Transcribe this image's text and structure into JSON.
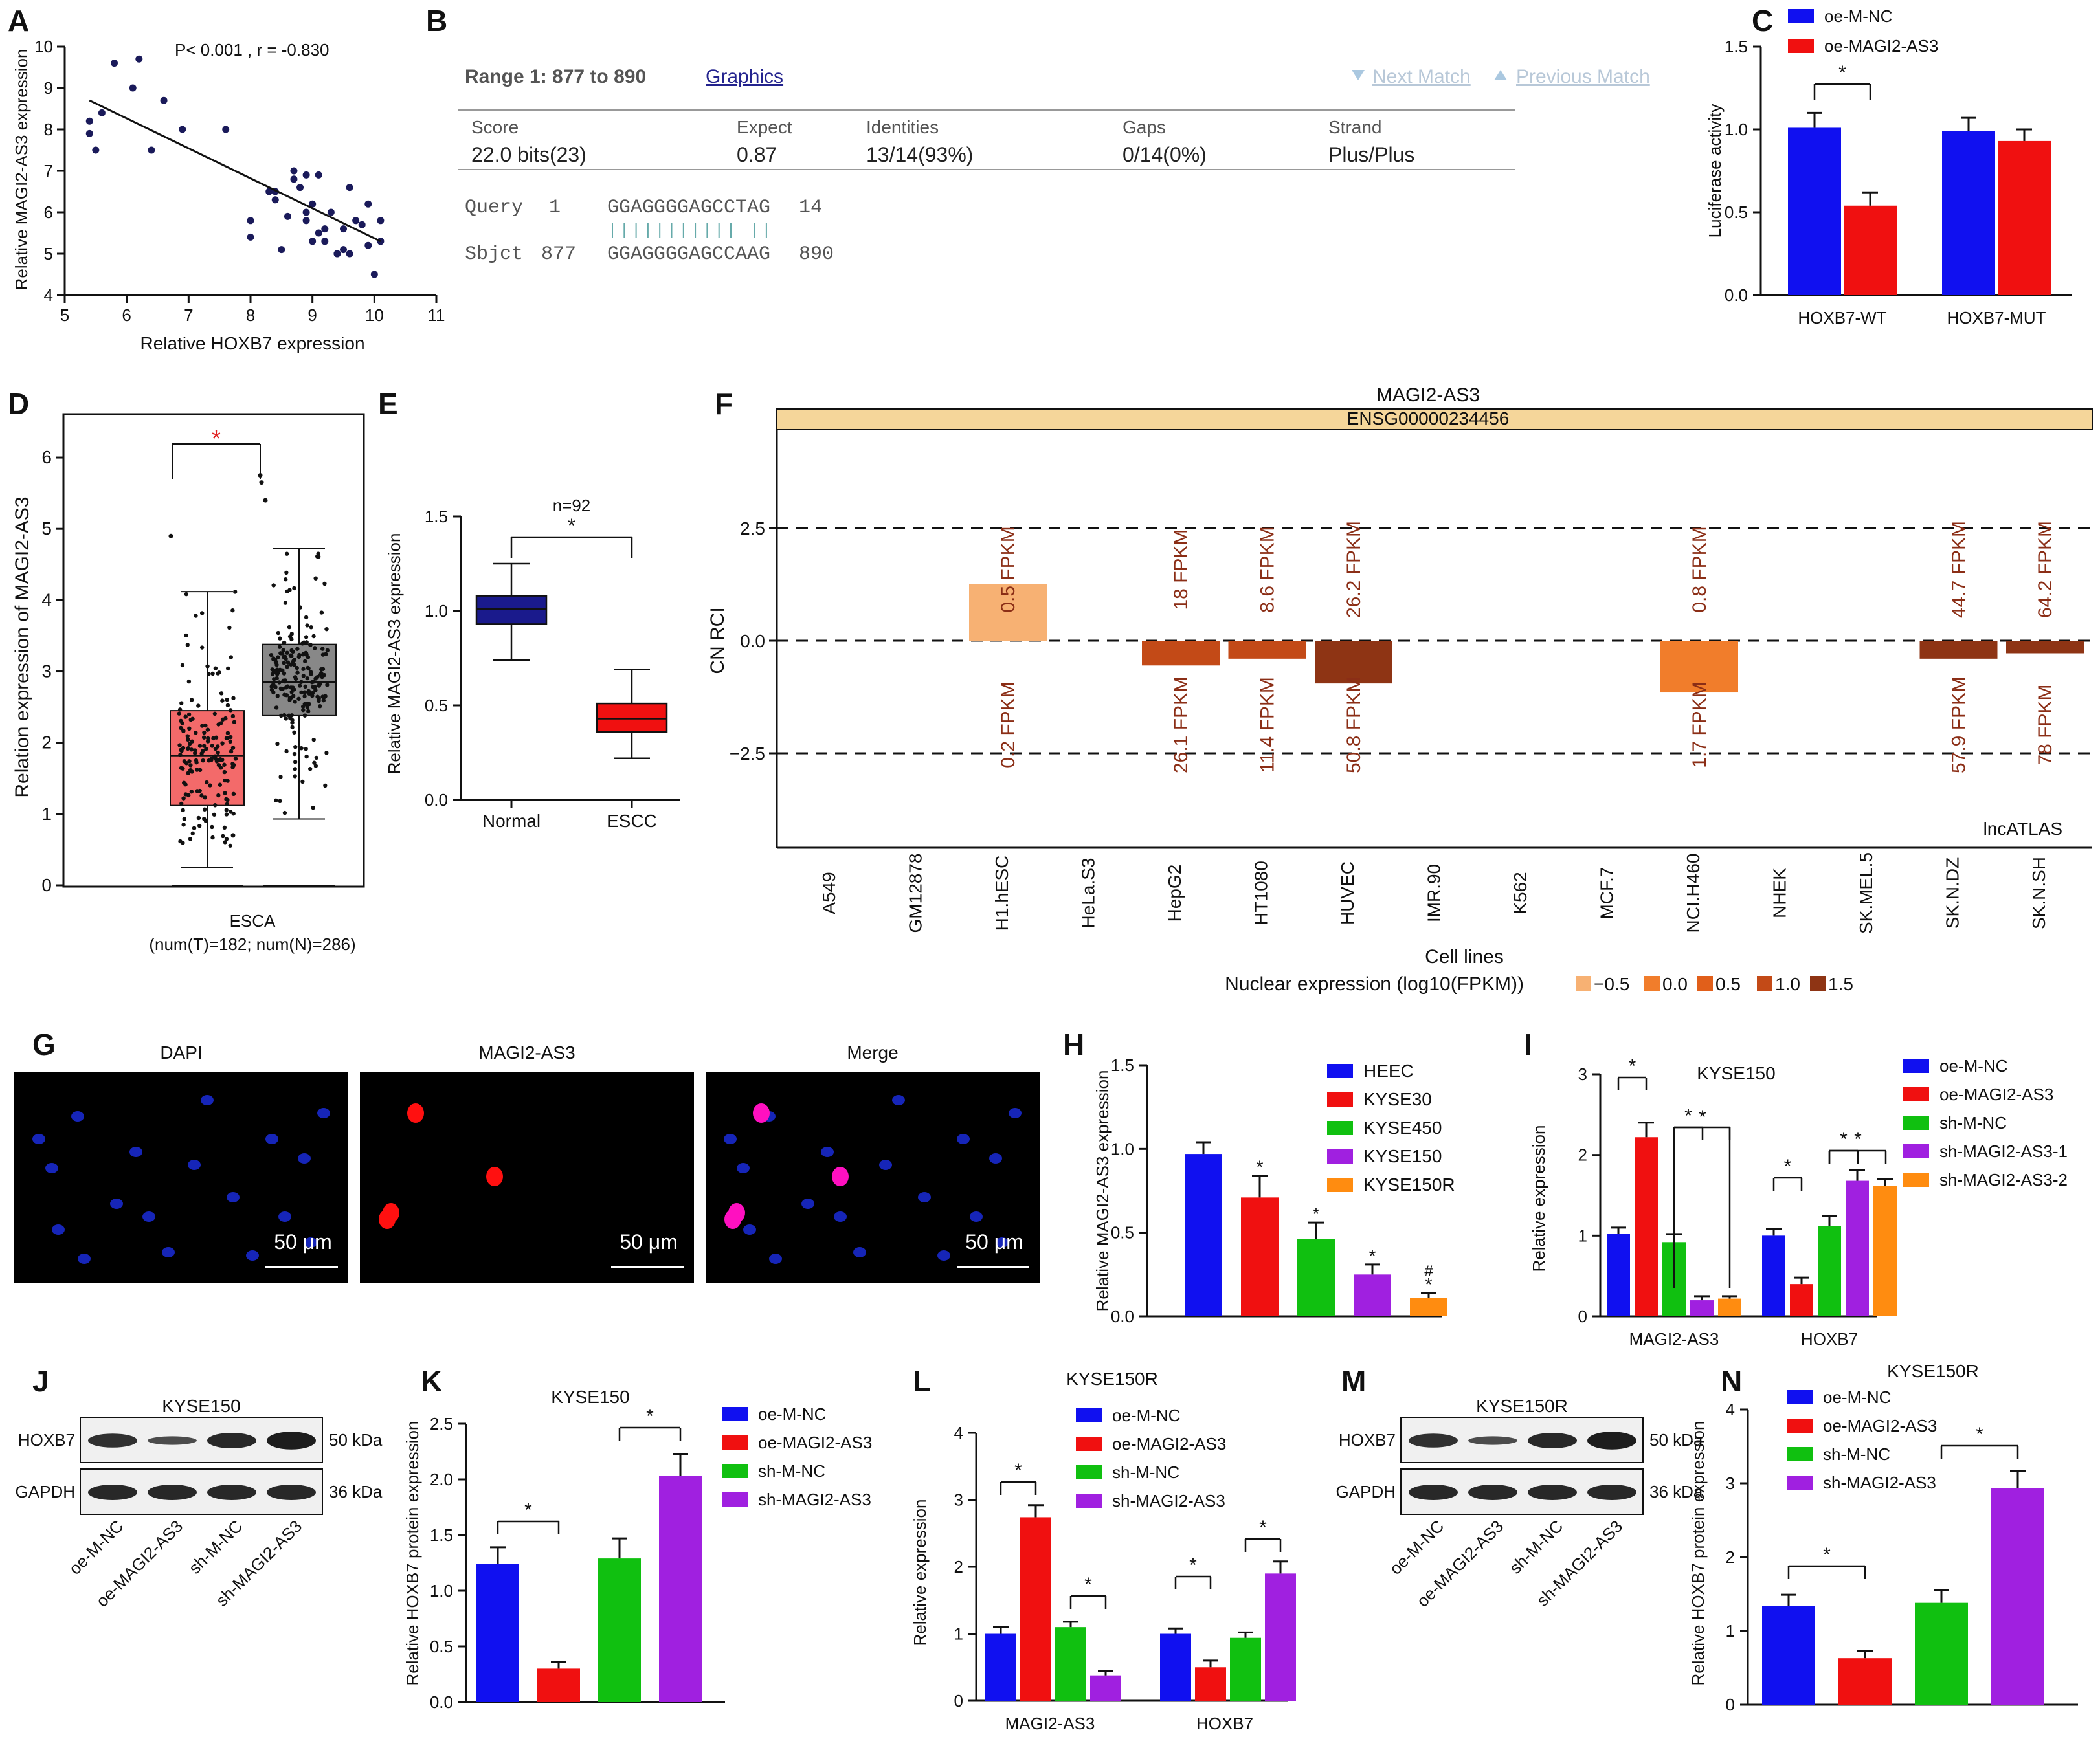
{
  "colors": {
    "blue": "#1010f0",
    "red": "#f01010",
    "green": "#10c010",
    "purple": "#a020e0",
    "orange": "#ff8c10",
    "navy": "#1a1a8c",
    "gray": "#777777"
  },
  "panels": {
    "A": {
      "label": "A",
      "stat": "P< 0.001 , r = -0.830",
      "xlabel": "Relative HOXB7 expression",
      "ylabel": "Relative MAGI2-AS3 expression",
      "xticks": [
        "5",
        "6",
        "7",
        "8",
        "9",
        "10",
        "11"
      ],
      "yticks": [
        "4",
        "5",
        "6",
        "7",
        "8",
        "9",
        "10"
      ]
    },
    "B": {
      "label": "B",
      "range": "Range 1: 877 to 890",
      "graphics": "Graphics",
      "next": "Next Match",
      "prev": "Previous Match",
      "headers": [
        "Score",
        "Expect",
        "Identities",
        "Gaps",
        "Strand"
      ],
      "values": [
        "22.0 bits(23)",
        "0.87",
        "13/14(93%)",
        "0/14(0%)",
        "Plus/Plus"
      ],
      "query_label": "Query",
      "query_start": "1",
      "query_seq": "GGAGGGGAGCCTAG",
      "query_end": "14",
      "sbjct_label": "Sbjct",
      "sbjct_start": "877",
      "sbjct_seq": "GGAGGGGAGCCAAG",
      "sbjct_end": "890"
    },
    "C": {
      "label": "C",
      "legend": [
        "oe-M-NC",
        "oe-MAGI2-AS3"
      ],
      "ylabel": "Luciferase activity",
      "yticks": [
        "0.0",
        "0.5",
        "1.0",
        "1.5"
      ],
      "star": "*"
    },
    "D": {
      "label": "D",
      "ylabel": "Relation expression of MAGI2-AS3",
      "yticks": [
        "0",
        "1",
        "2",
        "3",
        "4",
        "5",
        "6"
      ],
      "xlabel1": "ESCA",
      "xlabel2": "(num(T)=182; num(N)=286)",
      "star": "*"
    },
    "E": {
      "label": "E",
      "ylabel": "Relative MAGI2-AS3 expression",
      "yticks": [
        "0.0",
        "0.5",
        "1.0",
        "1.5"
      ],
      "n": "n=92",
      "star": "*"
    },
    "F": {
      "label": "F",
      "title": "MAGI2-AS3",
      "gene_id": "ENSG00000234456",
      "ylabel": "CN RCI",
      "yticks": [
        "2.5",
        "0.0",
        "−2.5"
      ],
      "corner": "lncATLAS",
      "xlabel": "Cell lines",
      "legend_title": "Nuclear expression (log10(FPKM))",
      "legend": [
        "−0.5",
        "0.0",
        "0.5",
        "1.0",
        "1.5"
      ]
    },
    "G": {
      "label": "G",
      "titles": [
        "DAPI",
        "MAGI2-AS3",
        "Merge"
      ],
      "scale": "50 μm"
    },
    "H": {
      "label": "H",
      "ylabel": "Relative MAGI2-AS3 expression",
      "yticks": [
        "0.0",
        "0.5",
        "1.0",
        "1.5"
      ],
      "legend": [
        "HEEC",
        "KYSE30",
        "KYSE450",
        "KYSE150",
        "KYSE150R"
      ],
      "hash": "#"
    },
    "I": {
      "label": "I",
      "title": "KYSE150",
      "ylabel": "Relative expression",
      "yticks": [
        "0",
        "1",
        "2",
        "3"
      ],
      "legend": [
        "oe-M-NC",
        "oe-MAGI2-AS3",
        "sh-M-NC",
        "sh-MAGI2-AS3-1",
        "sh-MAGI2-AS3-2"
      ]
    },
    "J": {
      "label": "J",
      "title": "KYSE150",
      "rows": [
        "HOXB7",
        "GAPDH"
      ],
      "kda": [
        "50 kDa",
        "36 kDa"
      ],
      "lanes": [
        "oe-M-NC",
        "oe-MAGI2-AS3",
        "sh-M-NC",
        "sh-MAGI2-AS3"
      ]
    },
    "K": {
      "label": "K",
      "title": "KYSE150",
      "ylabel": "Relative HOXB7 protein expression",
      "yticks": [
        "0.0",
        "0.5",
        "1.0",
        "1.5",
        "2.0",
        "2.5"
      ],
      "legend": [
        "oe-M-NC",
        "oe-MAGI2-AS3",
        "sh-M-NC",
        "sh-MAGI2-AS3"
      ]
    },
    "L": {
      "label": "L",
      "title": "KYSE150R",
      "ylabel": "Relative expression",
      "yticks": [
        "0",
        "1",
        "2",
        "3",
        "4"
      ],
      "legend": [
        "oe-M-NC",
        "oe-MAGI2-AS3",
        "sh-M-NC",
        "sh-MAGI2-AS3"
      ]
    },
    "M": {
      "label": "M",
      "title": "KYSE150R",
      "rows": [
        "HOXB7",
        "GAPDH"
      ],
      "kda": [
        "50 kDa",
        "36 kDa"
      ],
      "lanes": [
        "oe-M-NC",
        "oe-MAGI2-AS3",
        "sh-M-NC",
        "sh-MAGI2-AS3"
      ]
    },
    "N": {
      "label": "N",
      "title": "KYSE150R",
      "ylabel": "Relative HOXB7 protein expression",
      "yticks": [
        "0",
        "1",
        "2",
        "3",
        "4"
      ],
      "legend": [
        "oe-M-NC",
        "oe-MAGI2-AS3",
        "sh-M-NC",
        "sh-MAGI2-AS3"
      ]
    }
  },
  "chart_data": [
    {
      "panel": "A",
      "type": "scatter",
      "title": "",
      "xlabel": "Relative HOXB7 expression",
      "ylabel": "Relative MAGI2-AS3 expression",
      "xlim": [
        5,
        11
      ],
      "ylim": [
        4,
        10
      ],
      "x": [
        5.4,
        5.5,
        5.4,
        5.6,
        5.8,
        6.1,
        6.2,
        6.4,
        6.6,
        6.9,
        7.6,
        8.0,
        8.0,
        8.4,
        8.5,
        8.6,
        8.7,
        8.8,
        8.9,
        9.0,
        9.1,
        9.2,
        9.3,
        9.4,
        9.5,
        9.6,
        9.7,
        9.8,
        9.9,
        10.0,
        10.1,
        10.1,
        8.7,
        8.9,
        9.0,
        9.2,
        9.4,
        8.3,
        8.9,
        9.6,
        9.1,
        9.9,
        9.5,
        8.4
      ],
      "y": [
        7.9,
        7.5,
        8.2,
        8.4,
        9.6,
        9.0,
        9.7,
        7.5,
        8.7,
        8.0,
        8.0,
        5.8,
        5.4,
        6.5,
        5.1,
        5.9,
        6.8,
        6.6,
        5.8,
        5.3,
        6.9,
        5.6,
        6.0,
        5.0,
        5.1,
        6.6,
        5.8,
        5.7,
        6.2,
        4.5,
        5.3,
        5.8,
        7.0,
        6.0,
        6.2,
        5.3,
        5.0,
        6.5,
        6.9,
        5.0,
        5.5,
        5.2,
        5.6,
        6.3
      ],
      "fit": {
        "x": [
          5.4,
          10.1
        ],
        "y": [
          8.7,
          5.3
        ]
      }
    },
    {
      "panel": "C",
      "type": "bar",
      "categories": [
        "HOXB7-WT",
        "HOXB7-MUT"
      ],
      "series": [
        {
          "name": "oe-M-NC",
          "values": [
            1.01,
            0.99
          ],
          "errors": [
            0.09,
            0.08
          ]
        },
        {
          "name": "oe-MAGI2-AS3",
          "values": [
            0.54,
            0.93
          ],
          "errors": [
            0.08,
            0.07
          ]
        }
      ],
      "ylabel": "Luciferase activity",
      "ylim": [
        0,
        1.5
      ]
    },
    {
      "panel": "D",
      "type": "box",
      "categories": [
        "T",
        "N"
      ],
      "ylim": [
        0,
        6
      ],
      "boxes": [
        {
          "min": 0.25,
          "q1": 1.12,
          "median": 1.82,
          "q3": 2.45,
          "max": 4.12
        },
        {
          "min": 0.93,
          "q1": 2.38,
          "median": 2.85,
          "q3": 3.38,
          "max": 4.72
        }
      ]
    },
    {
      "panel": "E",
      "type": "box",
      "categories": [
        "Normal",
        "ESCC"
      ],
      "ylim": [
        0,
        1.5
      ],
      "boxes": [
        {
          "min": 0.74,
          "q1": 0.93,
          "median": 1.01,
          "q3": 1.08,
          "max": 1.25
        },
        {
          "min": 0.22,
          "q1": 0.36,
          "median": 0.43,
          "q3": 0.51,
          "max": 0.69
        }
      ]
    },
    {
      "panel": "F",
      "type": "bar",
      "categories": [
        "A549",
        "GM12878",
        "H1.hESC",
        "HeLa.S3",
        "HepG2",
        "HT1080",
        "HUVEC",
        "IMR.90",
        "K562",
        "MCF.7",
        "NCI.H460",
        "NHEK",
        "SK.MEL.5",
        "SK.N.DZ",
        "SK.N.SH"
      ],
      "values": [
        null,
        null,
        1.25,
        null,
        -0.55,
        -0.4,
        -0.95,
        null,
        null,
        null,
        -1.15,
        null,
        null,
        -0.4,
        -0.28
      ],
      "top_labels": [
        "",
        "",
        "0.5 FPKM",
        "",
        "18 FPKM",
        "8.6 FPKM",
        "26.2 FPKM",
        "",
        "",
        "",
        "0.8 FPKM",
        "",
        "",
        "44.7 FPKM",
        "64.2 FPKM"
      ],
      "bottom_labels": [
        "",
        "",
        "0.2 FPKM",
        "",
        "26.1 FPKM",
        "11.4 FPKM",
        "50.8 FPKM",
        "",
        "",
        "",
        "1.7 FPKM",
        "",
        "",
        "57.9 FPKM",
        "78 FPKM"
      ],
      "fill_levels": [
        null,
        null,
        -0.5,
        null,
        1.0,
        1.0,
        1.5,
        null,
        null,
        null,
        0.0,
        null,
        null,
        1.5,
        1.5
      ],
      "ylabel": "CN RCI",
      "ylim": [
        -4.5,
        4.5
      ]
    },
    {
      "panel": "H",
      "type": "bar",
      "categories": [
        "HEEC",
        "KYSE30",
        "KYSE450",
        "KYSE150",
        "KYSE150R"
      ],
      "values": [
        0.97,
        0.71,
        0.46,
        0.25,
        0.11
      ],
      "errors": [
        0.07,
        0.13,
        0.1,
        0.06,
        0.03
      ],
      "ylabel": "Relative MAGI2-AS3 expression",
      "ylim": [
        0,
        1.5
      ]
    },
    {
      "panel": "I",
      "type": "bar",
      "categories": [
        "MAGI2-AS3",
        "HOXB7"
      ],
      "series": [
        {
          "name": "oe-M-NC",
          "values": [
            1.02,
            1.0
          ],
          "errors": [
            0.08,
            0.08
          ]
        },
        {
          "name": "oe-MAGI2-AS3",
          "values": [
            2.22,
            0.4
          ],
          "errors": [
            0.18,
            0.08
          ]
        },
        {
          "name": "sh-M-NC",
          "values": [
            0.92,
            1.12
          ],
          "errors": [
            0.1,
            0.12
          ]
        },
        {
          "name": "sh-MAGI2-AS3-1",
          "values": [
            0.2,
            1.68
          ],
          "errors": [
            0.05,
            0.13
          ]
        },
        {
          "name": "sh-MAGI2-AS3-2",
          "values": [
            0.22,
            1.62
          ],
          "errors": [
            0.03,
            0.08
          ]
        }
      ],
      "ylabel": "Relative expression",
      "ylim": [
        0,
        3
      ]
    },
    {
      "panel": "K",
      "type": "bar",
      "categories": [
        "oe-M-NC",
        "oe-MAGI2-AS3",
        "sh-M-NC",
        "sh-MAGI2-AS3"
      ],
      "values": [
        1.24,
        0.3,
        1.29,
        2.03
      ],
      "errors": [
        0.15,
        0.06,
        0.18,
        0.2
      ],
      "ylabel": "Relative HOXB7 protein expression",
      "ylim": [
        0,
        2.5
      ]
    },
    {
      "panel": "L",
      "type": "bar",
      "categories": [
        "MAGI2-AS3",
        "HOXB7"
      ],
      "series": [
        {
          "name": "oe-M-NC",
          "values": [
            1.0,
            1.0
          ],
          "errors": [
            0.1,
            0.08
          ]
        },
        {
          "name": "oe-MAGI2-AS3",
          "values": [
            2.74,
            0.5
          ],
          "errors": [
            0.18,
            0.1
          ]
        },
        {
          "name": "sh-M-NC",
          "values": [
            1.1,
            0.94
          ],
          "errors": [
            0.08,
            0.08
          ]
        },
        {
          "name": "sh-MAGI2-AS3",
          "values": [
            0.38,
            1.9
          ],
          "errors": [
            0.06,
            0.18
          ]
        }
      ],
      "ylabel": "Relative expression",
      "ylim": [
        0,
        4
      ]
    },
    {
      "panel": "N",
      "type": "bar",
      "categories": [
        "oe-M-NC",
        "oe-MAGI2-AS3",
        "sh-M-NC",
        "sh-MAGI2-AS3"
      ],
      "values": [
        1.34,
        0.63,
        1.38,
        2.93
      ],
      "errors": [
        0.15,
        0.1,
        0.17,
        0.24
      ],
      "ylabel": "Relative HOXB7 protein expression",
      "ylim": [
        0,
        4
      ]
    }
  ]
}
